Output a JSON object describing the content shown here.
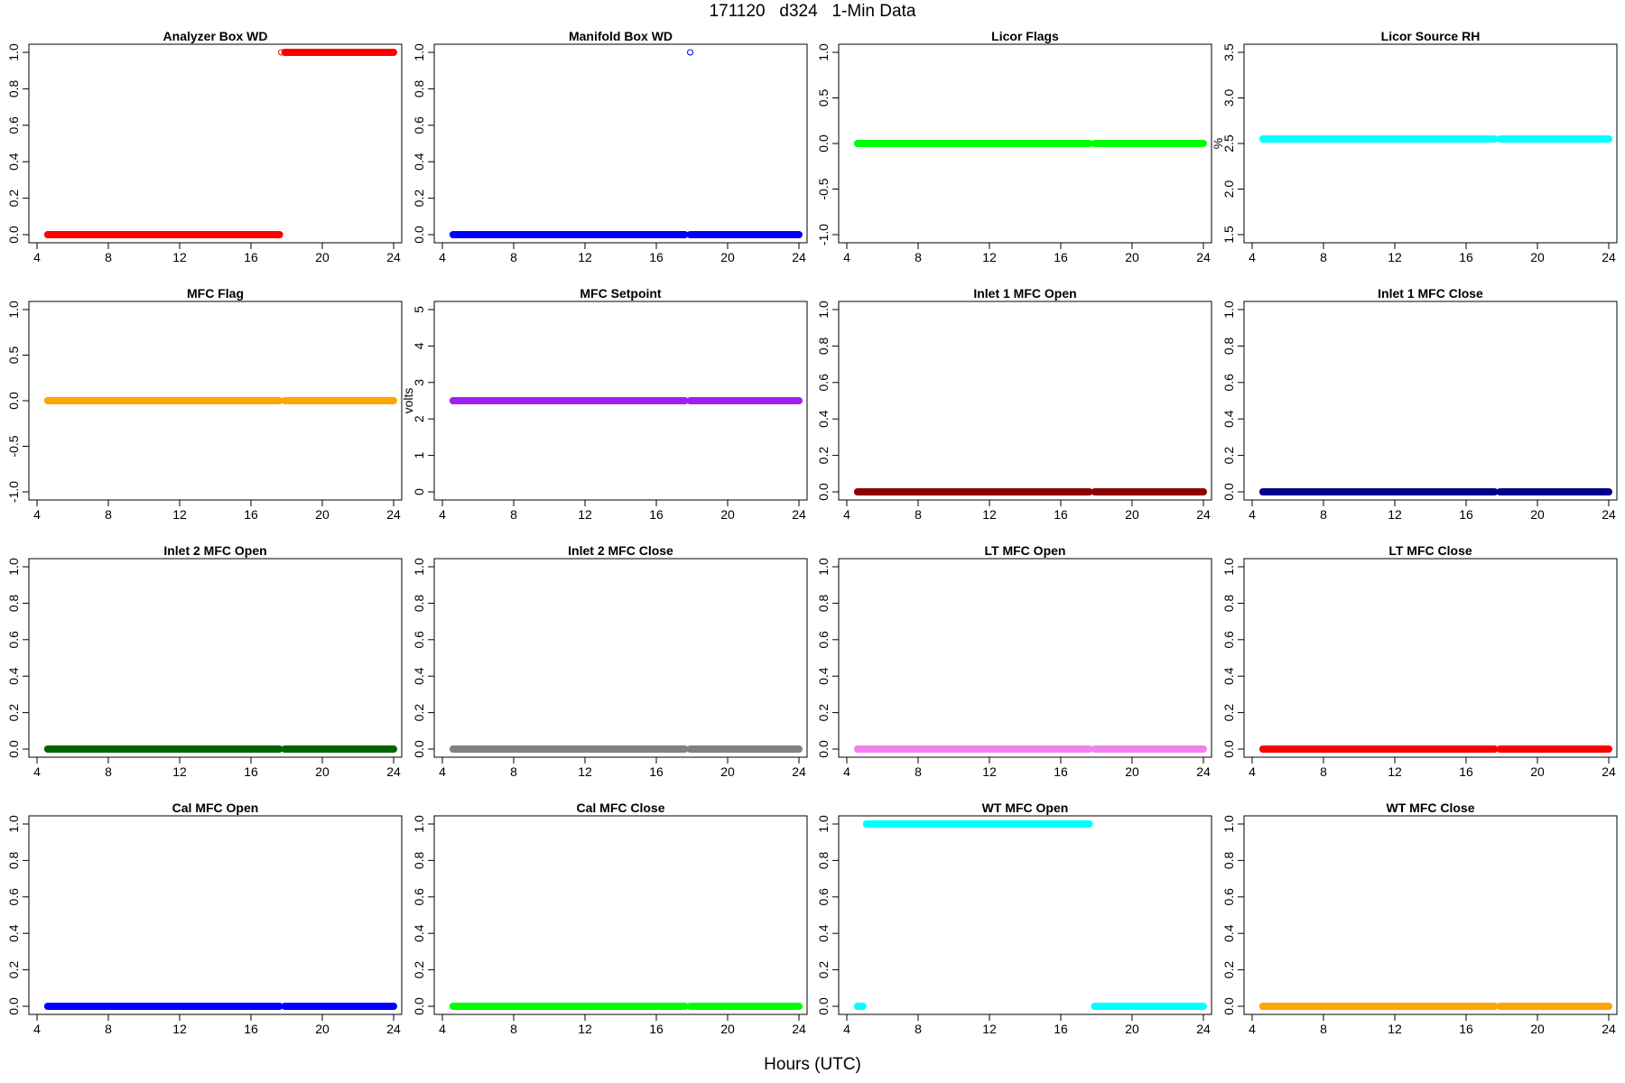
{
  "figure": {
    "title": "171120   d324   1-Min Data",
    "xlabel": "Hours (UTC)"
  },
  "chart_data": [
    {
      "type": "scatter",
      "title": "Analyzer Box WD",
      "color": "#ff0000",
      "ylabel": "",
      "ylim": [
        0,
        1
      ],
      "yticks": [
        0.0,
        0.2,
        0.4,
        0.6,
        0.8,
        1.0
      ],
      "ytick_labels": [
        "0.0",
        "0.2",
        "0.4",
        "0.6",
        "0.8",
        "1.0"
      ],
      "xlim": [
        4,
        24
      ],
      "xticks": [
        4,
        8,
        12,
        16,
        20,
        24
      ],
      "segments": [
        {
          "x_start": 4.6,
          "x_end": 17.6,
          "y": 0
        },
        {
          "x_start": 17.9,
          "x_end": 24,
          "y": 1
        }
      ],
      "points": [
        {
          "x": 17.7,
          "y": 1
        }
      ]
    },
    {
      "type": "scatter",
      "title": "Manifold Box WD",
      "color": "#0000ff",
      "ylabel": "",
      "ylim": [
        0,
        1
      ],
      "yticks": [
        0.0,
        0.2,
        0.4,
        0.6,
        0.8,
        1.0
      ],
      "ytick_labels": [
        "0.0",
        "0.2",
        "0.4",
        "0.6",
        "0.8",
        "1.0"
      ],
      "xlim": [
        4,
        24
      ],
      "xticks": [
        4,
        8,
        12,
        16,
        20,
        24
      ],
      "segments": [
        {
          "x_start": 4.6,
          "x_end": 17.6,
          "y": 0
        },
        {
          "x_start": 17.9,
          "x_end": 24,
          "y": 0
        }
      ],
      "points": [
        {
          "x": 17.9,
          "y": 1
        }
      ]
    },
    {
      "type": "scatter",
      "title": "Licor Flags",
      "color": "#00ff00",
      "ylabel": "",
      "ylim": [
        -1,
        1
      ],
      "yticks": [
        -1.0,
        -0.5,
        0.0,
        0.5,
        1.0
      ],
      "ytick_labels": [
        "-1.0",
        "-0.5",
        "0.0",
        "0.5",
        "1.0"
      ],
      "xlim": [
        4,
        24
      ],
      "xticks": [
        4,
        8,
        12,
        16,
        20,
        24
      ],
      "segments": [
        {
          "x_start": 4.6,
          "x_end": 17.6,
          "y": 0
        },
        {
          "x_start": 17.9,
          "x_end": 24,
          "y": 0
        }
      ],
      "points": []
    },
    {
      "type": "scatter",
      "title": "Licor Source RH",
      "color": "#00ffff",
      "ylabel": "%",
      "ylim": [
        1.5,
        3.5
      ],
      "yticks": [
        1.5,
        2.0,
        2.5,
        3.0,
        3.5
      ],
      "ytick_labels": [
        "1.5",
        "2.0",
        "2.5",
        "3.0",
        "3.5"
      ],
      "xlim": [
        4,
        24
      ],
      "xticks": [
        4,
        8,
        12,
        16,
        20,
        24
      ],
      "segments": [
        {
          "x_start": 4.6,
          "x_end": 17.6,
          "y": 2.55
        },
        {
          "x_start": 17.9,
          "x_end": 24,
          "y": 2.55
        }
      ],
      "points": []
    },
    {
      "type": "scatter",
      "title": "MFC Flag",
      "color": "#ffa500",
      "ylabel": "",
      "ylim": [
        -1,
        1
      ],
      "yticks": [
        -1.0,
        -0.5,
        0.0,
        0.5,
        1.0
      ],
      "ytick_labels": [
        "-1.0",
        "-0.5",
        "0.0",
        "0.5",
        "1.0"
      ],
      "xlim": [
        4,
        24
      ],
      "xticks": [
        4,
        8,
        12,
        16,
        20,
        24
      ],
      "segments": [
        {
          "x_start": 4.6,
          "x_end": 17.6,
          "y": 0
        },
        {
          "x_start": 17.9,
          "x_end": 24,
          "y": 0
        }
      ],
      "points": []
    },
    {
      "type": "scatter",
      "title": "MFC Setpoint",
      "color": "#a020f0",
      "ylabel": "volts",
      "ylim": [
        0,
        5
      ],
      "yticks": [
        0,
        1,
        2,
        3,
        4,
        5
      ],
      "ytick_labels": [
        "0",
        "1",
        "2",
        "3",
        "4",
        "5"
      ],
      "xlim": [
        4,
        24
      ],
      "xticks": [
        4,
        8,
        12,
        16,
        20,
        24
      ],
      "segments": [
        {
          "x_start": 4.6,
          "x_end": 17.6,
          "y": 2.5
        },
        {
          "x_start": 17.9,
          "x_end": 24,
          "y": 2.5
        }
      ],
      "points": []
    },
    {
      "type": "scatter",
      "title": "Inlet 1 MFC Open",
      "color": "#8b0000",
      "ylabel": "",
      "ylim": [
        0,
        1
      ],
      "yticks": [
        0.0,
        0.2,
        0.4,
        0.6,
        0.8,
        1.0
      ],
      "ytick_labels": [
        "0.0",
        "0.2",
        "0.4",
        "0.6",
        "0.8",
        "1.0"
      ],
      "xlim": [
        4,
        24
      ],
      "xticks": [
        4,
        8,
        12,
        16,
        20,
        24
      ],
      "segments": [
        {
          "x_start": 4.6,
          "x_end": 17.6,
          "y": 0
        },
        {
          "x_start": 17.9,
          "x_end": 24,
          "y": 0
        }
      ],
      "points": []
    },
    {
      "type": "scatter",
      "title": "Inlet 1 MFC Close",
      "color": "#00008b",
      "ylabel": "",
      "ylim": [
        0,
        1
      ],
      "yticks": [
        0.0,
        0.2,
        0.4,
        0.6,
        0.8,
        1.0
      ],
      "ytick_labels": [
        "0.0",
        "0.2",
        "0.4",
        "0.6",
        "0.8",
        "1.0"
      ],
      "xlim": [
        4,
        24
      ],
      "xticks": [
        4,
        8,
        12,
        16,
        20,
        24
      ],
      "segments": [
        {
          "x_start": 4.6,
          "x_end": 17.6,
          "y": 0
        },
        {
          "x_start": 17.9,
          "x_end": 24,
          "y": 0
        }
      ],
      "points": []
    },
    {
      "type": "scatter",
      "title": "Inlet 2 MFC Open",
      "color": "#006400",
      "ylabel": "",
      "ylim": [
        0,
        1
      ],
      "yticks": [
        0.0,
        0.2,
        0.4,
        0.6,
        0.8,
        1.0
      ],
      "ytick_labels": [
        "0.0",
        "0.2",
        "0.4",
        "0.6",
        "0.8",
        "1.0"
      ],
      "xlim": [
        4,
        24
      ],
      "xticks": [
        4,
        8,
        12,
        16,
        20,
        24
      ],
      "segments": [
        {
          "x_start": 4.6,
          "x_end": 17.6,
          "y": 0
        },
        {
          "x_start": 17.9,
          "x_end": 24,
          "y": 0
        }
      ],
      "points": []
    },
    {
      "type": "scatter",
      "title": "Inlet 2 MFC Close",
      "color": "#808080",
      "ylabel": "",
      "ylim": [
        0,
        1
      ],
      "yticks": [
        0.0,
        0.2,
        0.4,
        0.6,
        0.8,
        1.0
      ],
      "ytick_labels": [
        "0.0",
        "0.2",
        "0.4",
        "0.6",
        "0.8",
        "1.0"
      ],
      "xlim": [
        4,
        24
      ],
      "xticks": [
        4,
        8,
        12,
        16,
        20,
        24
      ],
      "segments": [
        {
          "x_start": 4.6,
          "x_end": 17.6,
          "y": 0
        },
        {
          "x_start": 17.9,
          "x_end": 24,
          "y": 0
        }
      ],
      "points": []
    },
    {
      "type": "scatter",
      "title": "LT MFC Open",
      "color": "#ee82ee",
      "ylabel": "",
      "ylim": [
        0,
        1
      ],
      "yticks": [
        0.0,
        0.2,
        0.4,
        0.6,
        0.8,
        1.0
      ],
      "ytick_labels": [
        "0.0",
        "0.2",
        "0.4",
        "0.6",
        "0.8",
        "1.0"
      ],
      "xlim": [
        4,
        24
      ],
      "xticks": [
        4,
        8,
        12,
        16,
        20,
        24
      ],
      "segments": [
        {
          "x_start": 4.6,
          "x_end": 17.6,
          "y": 0
        },
        {
          "x_start": 17.9,
          "x_end": 24,
          "y": 0
        }
      ],
      "points": []
    },
    {
      "type": "scatter",
      "title": "LT MFC Close",
      "color": "#ff0000",
      "ylabel": "",
      "ylim": [
        0,
        1
      ],
      "yticks": [
        0.0,
        0.2,
        0.4,
        0.6,
        0.8,
        1.0
      ],
      "ytick_labels": [
        "0.0",
        "0.2",
        "0.4",
        "0.6",
        "0.8",
        "1.0"
      ],
      "xlim": [
        4,
        24
      ],
      "xticks": [
        4,
        8,
        12,
        16,
        20,
        24
      ],
      "segments": [
        {
          "x_start": 4.6,
          "x_end": 17.6,
          "y": 0
        },
        {
          "x_start": 17.9,
          "x_end": 24,
          "y": 0
        }
      ],
      "points": []
    },
    {
      "type": "scatter",
      "title": "Cal MFC Open",
      "color": "#0000ff",
      "ylabel": "",
      "ylim": [
        0,
        1
      ],
      "yticks": [
        0.0,
        0.2,
        0.4,
        0.6,
        0.8,
        1.0
      ],
      "ytick_labels": [
        "0.0",
        "0.2",
        "0.4",
        "0.6",
        "0.8",
        "1.0"
      ],
      "xlim": [
        4,
        24
      ],
      "xticks": [
        4,
        8,
        12,
        16,
        20,
        24
      ],
      "segments": [
        {
          "x_start": 4.6,
          "x_end": 17.6,
          "y": 0
        },
        {
          "x_start": 17.9,
          "x_end": 24,
          "y": 0
        }
      ],
      "points": []
    },
    {
      "type": "scatter",
      "title": "Cal MFC Close",
      "color": "#00ff00",
      "ylabel": "",
      "ylim": [
        0,
        1
      ],
      "yticks": [
        0.0,
        0.2,
        0.4,
        0.6,
        0.8,
        1.0
      ],
      "ytick_labels": [
        "0.0",
        "0.2",
        "0.4",
        "0.6",
        "0.8",
        "1.0"
      ],
      "xlim": [
        4,
        24
      ],
      "xticks": [
        4,
        8,
        12,
        16,
        20,
        24
      ],
      "segments": [
        {
          "x_start": 4.6,
          "x_end": 17.6,
          "y": 0
        },
        {
          "x_start": 17.9,
          "x_end": 24,
          "y": 0
        }
      ],
      "points": []
    },
    {
      "type": "scatter",
      "title": "WT MFC Open",
      "color": "#00ffff",
      "ylabel": "",
      "ylim": [
        0,
        1
      ],
      "yticks": [
        0.0,
        0.2,
        0.4,
        0.6,
        0.8,
        1.0
      ],
      "ytick_labels": [
        "0.0",
        "0.2",
        "0.4",
        "0.6",
        "0.8",
        "1.0"
      ],
      "xlim": [
        4,
        24
      ],
      "xticks": [
        4,
        8,
        12,
        16,
        20,
        24
      ],
      "segments": [
        {
          "x_start": 4.6,
          "x_end": 4.9,
          "y": 0
        },
        {
          "x_start": 5.1,
          "x_end": 17.6,
          "y": 1
        },
        {
          "x_start": 17.9,
          "x_end": 24,
          "y": 0
        }
      ],
      "points": []
    },
    {
      "type": "scatter",
      "title": "WT MFC Close",
      "color": "#ffa500",
      "ylabel": "",
      "ylim": [
        0,
        1
      ],
      "yticks": [
        0.0,
        0.2,
        0.4,
        0.6,
        0.8,
        1.0
      ],
      "ytick_labels": [
        "0.0",
        "0.2",
        "0.4",
        "0.6",
        "0.8",
        "1.0"
      ],
      "xlim": [
        4,
        24
      ],
      "xticks": [
        4,
        8,
        12,
        16,
        20,
        24
      ],
      "segments": [
        {
          "x_start": 4.6,
          "x_end": 17.6,
          "y": 0
        },
        {
          "x_start": 17.9,
          "x_end": 24,
          "y": 0
        }
      ],
      "points": []
    }
  ]
}
